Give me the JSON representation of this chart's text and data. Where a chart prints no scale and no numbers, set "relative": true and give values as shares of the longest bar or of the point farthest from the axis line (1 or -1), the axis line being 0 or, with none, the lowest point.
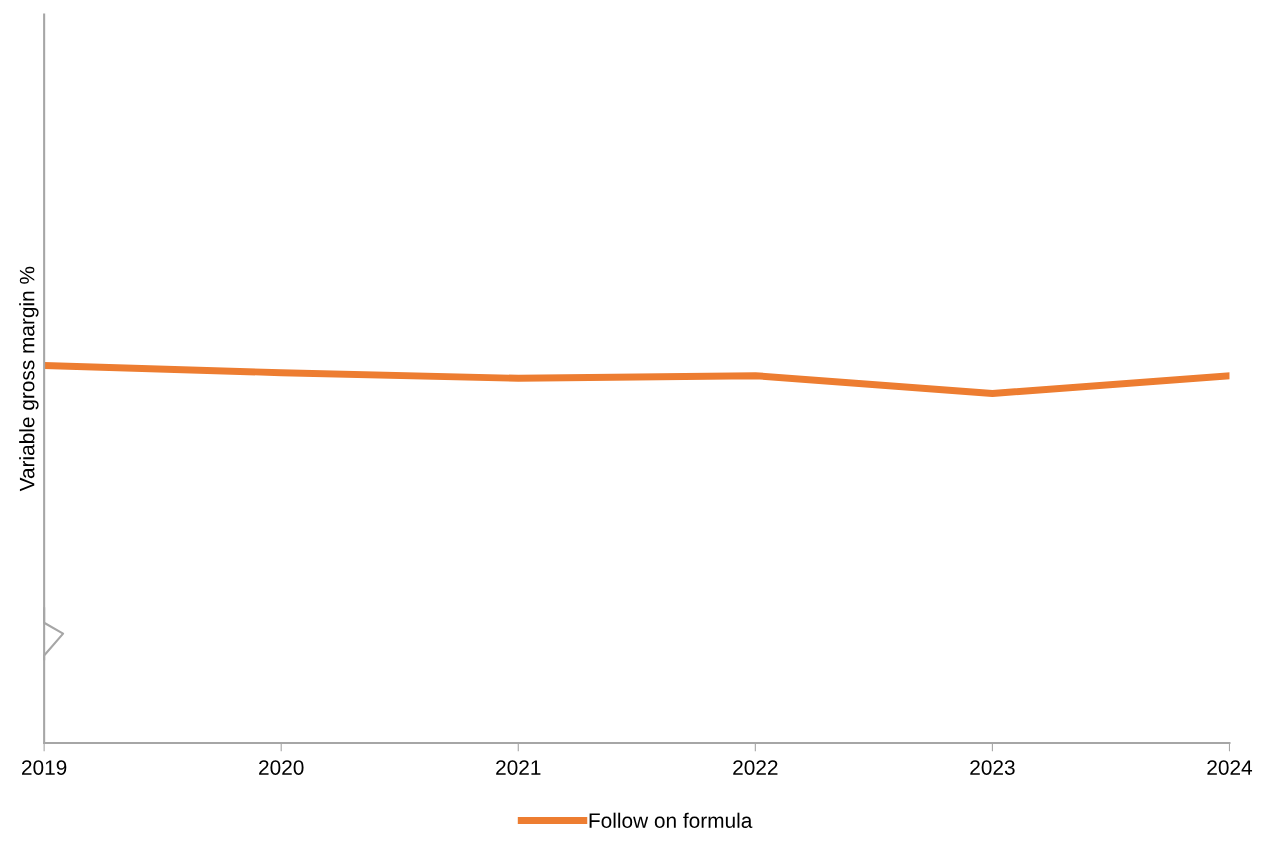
{
  "chart_data": {
    "type": "line",
    "ylabel": "Variable gross margin %",
    "relative": true,
    "categories": [
      "2019",
      "2020",
      "2021",
      "2022",
      "2023",
      "2024"
    ],
    "series": [
      {
        "name": "Follow on formula",
        "color": "#ed7d31",
        "values": [
          1,
          0.981,
          0.966,
          0.973,
          0.926,
          0.973
        ]
      }
    ],
    "legend": "bottom",
    "grid": false,
    "marker": "none",
    "line_style": "solid"
  }
}
